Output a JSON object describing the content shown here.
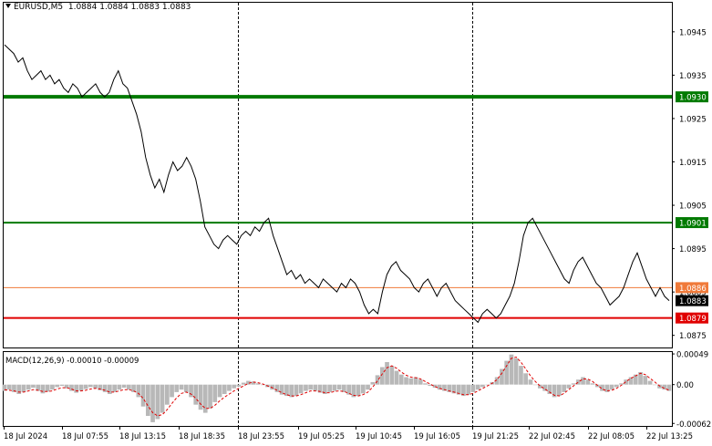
{
  "header": {
    "symbol": "EURUSD,M5",
    "ohlc": "1.0884 1.0884 1.0883 1.0883"
  },
  "macd_label": "MACD(12,26,9) -0.00010 -0.00009",
  "colors": {
    "price_line": "#000000",
    "green_level": "#007a00",
    "red_level": "#e00000",
    "orange_level": "#f07a3a",
    "current_price_box": "#000000",
    "macd_hist": "#b8b8b8",
    "macd_signal": "#e00000"
  },
  "chart_data": [
    {
      "type": "line",
      "xlabel": "",
      "ylabel": "",
      "ylim": [
        1.08722,
        1.09517
      ],
      "y_ticks": [
        "1.0945",
        "1.0935",
        "1.0925",
        "1.0915",
        "1.0905",
        "1.0895",
        "1.0885",
        "1.0875"
      ],
      "x_ticks": [
        "18 Jul 2024",
        "18 Jul 07:55",
        "18 Jul 13:15",
        "18 Jul 18:35",
        "18 Jul 23:55",
        "19 Jul 05:25",
        "19 Jul 10:45",
        "19 Jul 16:05",
        "19 Jul 21:25",
        "22 Jul 02:45",
        "22 Jul 08:05",
        "22 Jul 13:25"
      ],
      "session_separators": [
        "18 Jul 23:55",
        "19 Jul 21:25"
      ],
      "levels": [
        {
          "value": 1.093,
          "label": "1.0930",
          "color": "green"
        },
        {
          "value": 1.0901,
          "label": "1.0901",
          "color": "green"
        },
        {
          "value": 1.0886,
          "label": "1.0886",
          "color": "orange"
        },
        {
          "value": 1.0879,
          "label": "1.0879",
          "color": "red"
        }
      ],
      "current_price": {
        "value": 1.0883,
        "label": "1.0883"
      },
      "series": [
        {
          "values": [
            1.0942,
            1.0941,
            1.094,
            1.0938,
            1.0939,
            1.0936,
            1.0934,
            1.0935,
            1.0936,
            1.0934,
            1.0935,
            1.0933,
            1.0934,
            1.0932,
            1.0931,
            1.0933,
            1.0932,
            1.093,
            1.0931,
            1.0932,
            1.0933,
            1.0931,
            1.093,
            1.0931,
            1.0934,
            1.0936,
            1.0933,
            1.0932,
            1.0929,
            1.0926,
            1.0922,
            1.0916,
            1.0912,
            1.0909,
            1.0911,
            1.0908,
            1.0912,
            1.0915,
            1.0913,
            1.0914,
            1.0916,
            1.0914,
            1.0911,
            1.0906,
            1.09,
            1.0898,
            1.0896,
            1.0895,
            1.0897,
            1.0898,
            1.0897,
            1.0896,
            1.0898,
            1.0899,
            1.0898,
            1.09,
            1.0899,
            1.0901,
            1.0902,
            1.0898,
            1.0895,
            1.0892,
            1.0889,
            1.089,
            1.0888,
            1.0889,
            1.0887,
            1.0888,
            1.0887,
            1.0886,
            1.0888,
            1.0887,
            1.0886,
            1.0885,
            1.0887,
            1.0886,
            1.0888,
            1.0887,
            1.0885,
            1.0882,
            1.088,
            1.0881,
            1.088,
            1.0885,
            1.0889,
            1.0891,
            1.0892,
            1.089,
            1.0889,
            1.0888,
            1.0886,
            1.0885,
            1.0887,
            1.0888,
            1.0886,
            1.0884,
            1.0886,
            1.0887,
            1.0885,
            1.0883,
            1.0882,
            1.0881,
            1.088,
            1.0879,
            1.0878,
            1.088,
            1.0881,
            1.088,
            1.0879,
            1.088,
            1.0882,
            1.0884,
            1.0887,
            1.0892,
            1.0898,
            1.0901,
            1.0902,
            1.09,
            1.0898,
            1.0896,
            1.0894,
            1.0892,
            1.089,
            1.0888,
            1.0887,
            1.089,
            1.0892,
            1.0893,
            1.0891,
            1.0889,
            1.0887,
            1.0886,
            1.0884,
            1.0882,
            1.0883,
            1.0884,
            1.0886,
            1.0889,
            1.0892,
            1.0894,
            1.0891,
            1.0888,
            1.0886,
            1.0884,
            1.0886,
            1.0884,
            1.0883
          ]
        }
      ]
    },
    {
      "type": "bar",
      "title": "MACD(12,26,9)",
      "ylim": [
        -0.00066,
        0.00052
      ],
      "y_ticks": [
        "0.00049",
        "0.00",
        "-0.00062"
      ],
      "series": [
        {
          "values": [
            -0.0001,
            -8e-05,
            -0.00012,
            -0.00015,
            -0.00012,
            -8e-05,
            -5e-05,
            -0.0001,
            -0.00014,
            -0.00011,
            -8e-05,
            -4e-05,
            -2e-05,
            -6e-05,
            -0.0001,
            -0.00013,
            -0.0001,
            -7e-05,
            -4e-05,
            -6e-05,
            -9e-05,
            -0.00012,
            -0.00015,
            -0.00012,
            -8e-05,
            -5e-05,
            -8e-05,
            -0.00012,
            -0.0002,
            -0.00035,
            -0.0005,
            -0.0006,
            -0.00055,
            -0.00045,
            -0.00032,
            -0.0002,
            -0.00012,
            -8e-05,
            -0.00012,
            -0.0002,
            -0.00032,
            -0.0004,
            -0.00045,
            -0.00038,
            -0.00028,
            -0.0002,
            -0.00015,
            -0.0001,
            -6e-05,
            -3e-05,
            3e-05,
            6e-05,
            5e-05,
            2e-05,
            0.0,
            -4e-05,
            -8e-05,
            -0.00012,
            -0.00016,
            -0.00018,
            -0.0002,
            -0.00018,
            -0.00014,
            -0.0001,
            -8e-05,
            -0.0001,
            -0.00013,
            -0.00015,
            -0.00012,
            -0.0001,
            -8e-05,
            -0.00012,
            -0.00016,
            -0.0002,
            -0.00018,
            -0.00014,
            -8e-05,
            4e-05,
            0.00015,
            0.00028,
            0.00036,
            0.0003,
            0.00022,
            0.00016,
            0.00012,
            0.0001,
            0.00012,
            8e-05,
            2e-05,
            -2e-05,
            -5e-05,
            -8e-05,
            -0.0001,
            -0.00012,
            -0.00014,
            -0.00016,
            -0.00018,
            -0.00016,
            -0.00012,
            -8e-05,
            -4e-05,
            0.0,
            4e-05,
            0.00012,
            0.00025,
            0.00038,
            0.00048,
            0.00042,
            0.0003,
            0.00018,
            8e-05,
            0.0,
            -6e-05,
            -0.0001,
            -0.00015,
            -0.0002,
            -0.00018,
            -0.00012,
            -6e-05,
            2e-05,
            8e-05,
            0.00012,
            8e-05,
            2e-05,
            -4e-05,
            -0.0001,
            -0.00012,
            -8e-05,
            -4e-05,
            2e-05,
            8e-05,
            0.00012,
            0.00016,
            0.0002,
            0.00014,
            6e-05,
            0.0,
            -6e-05,
            -8e-05,
            -0.0001
          ]
        },
        {
          "values": [
            -8e-05,
            -9e-05,
            -0.0001,
            -0.00012,
            -0.00012,
            -0.0001,
            -8e-05,
            -9e-05,
            -0.00011,
            -0.00011,
            -0.0001,
            -7e-05,
            -5e-05,
            -5e-05,
            -7e-05,
            -0.0001,
            -0.0001,
            -9e-05,
            -7e-05,
            -6e-05,
            -7e-05,
            -9e-05,
            -0.00012,
            -0.00012,
            -0.0001,
            -8e-05,
            -8e-05,
            -0.0001,
            -0.00014,
            -0.00022,
            -0.00034,
            -0.00045,
            -0.0005,
            -0.00048,
            -0.0004,
            -0.0003,
            -0.00021,
            -0.00014,
            -0.00012,
            -0.00015,
            -0.00022,
            -0.00031,
            -0.00038,
            -0.00038,
            -0.00033,
            -0.00026,
            -0.0002,
            -0.00015,
            -0.0001,
            -6e-05,
            -2e-05,
            2e-05,
            4e-05,
            3e-05,
            1e-05,
            -2e-05,
            -5e-05,
            -9e-05,
            -0.00013,
            -0.00016,
            -0.00018,
            -0.00018,
            -0.00016,
            -0.00013,
            -0.0001,
            -0.0001,
            -0.00011,
            -0.00013,
            -0.00013,
            -0.00011,
            -0.0001,
            -0.00011,
            -0.00014,
            -0.00017,
            -0.00018,
            -0.00016,
            -0.00012,
            -4e-05,
            6e-05,
            0.00017,
            0.00027,
            0.0003,
            0.00026,
            0.0002,
            0.00015,
            0.00012,
            0.00011,
            9e-05,
            5e-05,
            1e-05,
            -3e-05,
            -6e-05,
            -8e-05,
            -0.0001,
            -0.00012,
            -0.00014,
            -0.00016,
            -0.00016,
            -0.00014,
            -0.0001,
            -6e-05,
            -2e-05,
            2e-05,
            8e-05,
            0.00018,
            0.0003,
            0.00042,
            0.00044,
            0.00036,
            0.00025,
            0.00014,
            5e-05,
            -2e-05,
            -7e-05,
            -0.00012,
            -0.00017,
            -0.00018,
            -0.00014,
            -8e-05,
            -2e-05,
            4e-05,
            9e-05,
            9e-05,
            5e-05,
            -1e-05,
            -7e-05,
            -0.0001,
            -9e-05,
            -6e-05,
            -1e-05,
            5e-05,
            0.0001,
            0.00014,
            0.00018,
            0.00016,
            0.0001,
            4e-05,
            -2e-05,
            -6e-05,
            -9e-05
          ]
        }
      ]
    }
  ]
}
